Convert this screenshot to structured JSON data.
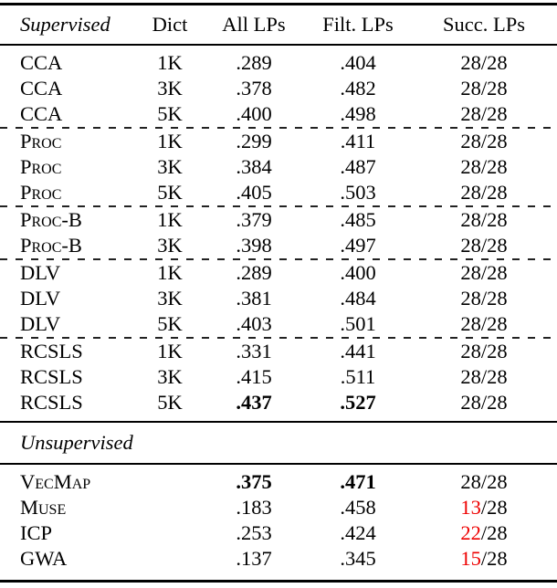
{
  "table": {
    "columns": [
      "Supervised",
      "Dict",
      "All LPs",
      "Filt. LPs",
      "Succ. LPs"
    ],
    "supervised": {
      "rows": [
        {
          "method": "CCA",
          "dict": "1K",
          "all_lps": ".289",
          "filt_lps": ".404",
          "succ_num": "28",
          "succ_den": "/28"
        },
        {
          "method": "CCA",
          "dict": "3K",
          "all_lps": ".378",
          "filt_lps": ".482",
          "succ_num": "28",
          "succ_den": "/28"
        },
        {
          "method": "CCA",
          "dict": "5K",
          "all_lps": ".400",
          "filt_lps": ".498",
          "succ_num": "28",
          "succ_den": "/28"
        },
        {
          "method": "Proc",
          "dict": "1K",
          "all_lps": ".299",
          "filt_lps": ".411",
          "succ_num": "28",
          "succ_den": "/28"
        },
        {
          "method": "Proc",
          "dict": "3K",
          "all_lps": ".384",
          "filt_lps": ".487",
          "succ_num": "28",
          "succ_den": "/28"
        },
        {
          "method": "Proc",
          "dict": "5K",
          "all_lps": ".405",
          "filt_lps": ".503",
          "succ_num": "28",
          "succ_den": "/28"
        },
        {
          "method": "Proc-B",
          "dict": "1K",
          "all_lps": ".379",
          "filt_lps": ".485",
          "succ_num": "28",
          "succ_den": "/28"
        },
        {
          "method": "Proc-B",
          "dict": "3K",
          "all_lps": ".398",
          "filt_lps": ".497",
          "succ_num": "28",
          "succ_den": "/28"
        },
        {
          "method": "DLV",
          "dict": "1K",
          "all_lps": ".289",
          "filt_lps": ".400",
          "succ_num": "28",
          "succ_den": "/28"
        },
        {
          "method": "DLV",
          "dict": "3K",
          "all_lps": ".381",
          "filt_lps": ".484",
          "succ_num": "28",
          "succ_den": "/28"
        },
        {
          "method": "DLV",
          "dict": "5K",
          "all_lps": ".403",
          "filt_lps": ".501",
          "succ_num": "28",
          "succ_den": "/28"
        },
        {
          "method": "RCSLS",
          "dict": "1K",
          "all_lps": ".331",
          "filt_lps": ".441",
          "succ_num": "28",
          "succ_den": "/28"
        },
        {
          "method": "RCSLS",
          "dict": "3K",
          "all_lps": ".415",
          "filt_lps": ".511",
          "succ_num": "28",
          "succ_den": "/28"
        },
        {
          "method": "RCSLS",
          "dict": "5K",
          "all_lps": ".437",
          "filt_lps": ".527",
          "succ_num": "28",
          "succ_den": "/28"
        }
      ]
    },
    "unsupervised": {
      "label": "Unsupervised",
      "rows": [
        {
          "method": "VecMap",
          "dict": "",
          "all_lps": ".375",
          "filt_lps": ".471",
          "succ_num": "28",
          "succ_den": "/28"
        },
        {
          "method": "Muse",
          "dict": "",
          "all_lps": ".183",
          "filt_lps": ".458",
          "succ_num": "13",
          "succ_den": "/28"
        },
        {
          "method": "ICP",
          "dict": "",
          "all_lps": ".253",
          "filt_lps": ".424",
          "succ_num": "22",
          "succ_den": "/28"
        },
        {
          "method": "GWA",
          "dict": "",
          "all_lps": ".137",
          "filt_lps": ".345",
          "succ_num": "15",
          "succ_den": "/28"
        }
      ]
    },
    "colors": {
      "failed_lp_red": "#ee0000",
      "text": "#000000",
      "background": "#ffffff"
    }
  }
}
